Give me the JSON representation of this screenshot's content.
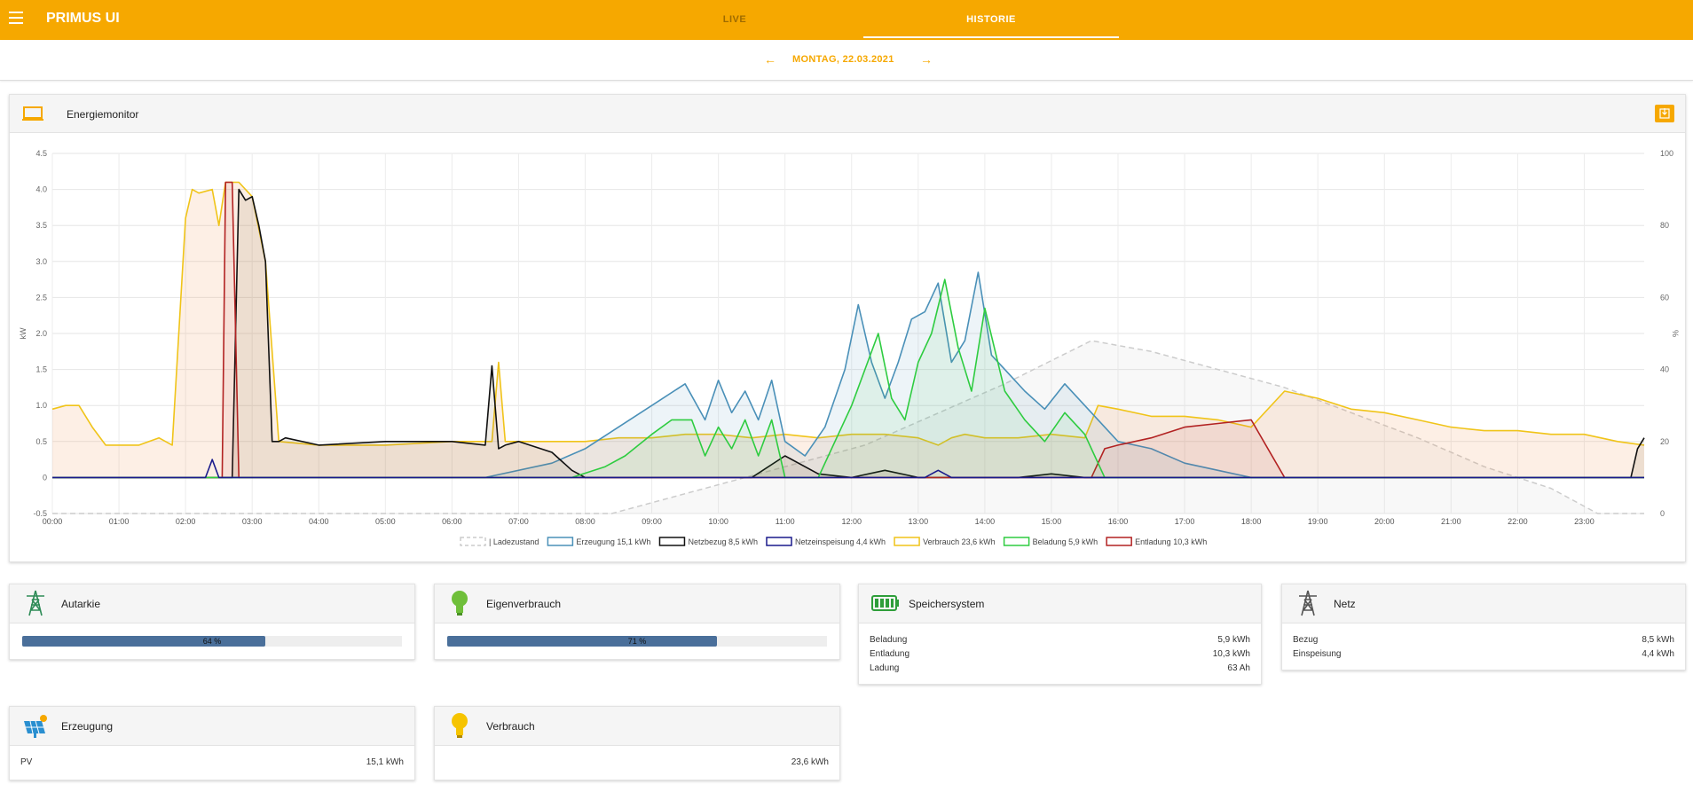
{
  "app": {
    "title": "PRIMUS UI"
  },
  "tabs": [
    {
      "label": "LIVE"
    },
    {
      "label": "HISTORIE"
    }
  ],
  "datebar": {
    "date": "MONTAG, 22.03.2021",
    "prev": "←",
    "next": "→"
  },
  "energiemonitor": {
    "title": "Energiemonitor"
  },
  "colors": {
    "accent": "#f6a800",
    "erzeugung": "#4a90b8",
    "netzbezug": "#111111",
    "netzeinspeisung": "#1a1a8c",
    "verbrauch": "#f0c419",
    "beladung": "#2ecc40",
    "entladung": "#b22222",
    "ladezustand": "#cccccc"
  },
  "chart_data": {
    "type": "line",
    "ylabel": "kW",
    "y2label": "%",
    "ylim": [
      -0.5,
      4.5
    ],
    "y2lim": [
      0,
      100
    ],
    "yticks": [
      "4.5",
      "4.0",
      "3.5",
      "3.0",
      "2.5",
      "2.0",
      "1.5",
      "1.0",
      "0.5",
      "0",
      "-0.5"
    ],
    "y2ticks": [
      "100",
      "80",
      "60",
      "40",
      "20",
      "0"
    ],
    "xticks": [
      "00:00",
      "01:00",
      "02:00",
      "03:00",
      "04:00",
      "05:00",
      "06:00",
      "07:00",
      "08:00",
      "09:00",
      "10:00",
      "11:00",
      "12:00",
      "13:00",
      "14:00",
      "15:00",
      "16:00",
      "17:00",
      "18:00",
      "19:00",
      "20:00",
      "21:00",
      "22:00",
      "23:00"
    ],
    "legend_position": "bottom",
    "series": [
      {
        "name": "Ladezustand",
        "axis": "right",
        "x": [
          0,
          8.4,
          12.2,
          14.3,
          15.6,
          16.5,
          18.5,
          19.5,
          20.5,
          21.5,
          22.5,
          23.2,
          23.9
        ],
        "values": [
          0,
          0,
          19,
          36,
          48,
          45,
          35,
          28,
          21,
          13,
          7,
          0,
          0
        ]
      },
      {
        "name": "Erzeugung 15,1 kWh",
        "axis": "left",
        "x": [
          0,
          6.5,
          7.5,
          8.0,
          8.5,
          9.0,
          9.5,
          9.8,
          10.0,
          10.2,
          10.4,
          10.6,
          10.8,
          11.0,
          11.3,
          11.6,
          11.9,
          12.1,
          12.3,
          12.5,
          12.7,
          12.9,
          13.1,
          13.3,
          13.5,
          13.7,
          13.9,
          14.1,
          14.3,
          14.6,
          14.9,
          15.2,
          15.6,
          16.0,
          16.5,
          17.0,
          17.5,
          18.0,
          23.9
        ],
        "values": [
          0,
          0,
          0.2,
          0.4,
          0.7,
          1.0,
          1.3,
          0.8,
          1.35,
          0.9,
          1.2,
          0.8,
          1.35,
          0.5,
          0.3,
          0.7,
          1.5,
          2.4,
          1.6,
          1.1,
          1.6,
          2.2,
          2.3,
          2.7,
          1.6,
          1.9,
          2.85,
          1.7,
          1.5,
          1.2,
          0.95,
          1.3,
          0.9,
          0.5,
          0.4,
          0.2,
          0.1,
          0,
          0
        ]
      },
      {
        "name": "Netzbezug 8,5 kWh",
        "axis": "left",
        "x": [
          0,
          2.6,
          2.7,
          2.8,
          2.9,
          3.0,
          3.1,
          3.2,
          3.3,
          3.4,
          3.5,
          4.0,
          5.0,
          6.0,
          6.5,
          6.6,
          6.7,
          6.8,
          7.0,
          7.5,
          7.8,
          8.0,
          9.0,
          10.0,
          10.5,
          11.0,
          11.5,
          12.0,
          12.5,
          13.0,
          13.5,
          14.0,
          14.5,
          15.0,
          15.5,
          23.7,
          23.8,
          23.9
        ],
        "values": [
          0,
          0,
          0,
          4.0,
          3.85,
          3.9,
          3.5,
          3.0,
          0.5,
          0.5,
          0.55,
          0.45,
          0.5,
          0.5,
          0.45,
          1.55,
          0.4,
          0.45,
          0.5,
          0.35,
          0.1,
          0,
          0,
          0,
          0,
          0.3,
          0.05,
          0,
          0.1,
          0,
          0,
          0,
          0,
          0.05,
          0,
          0,
          0.4,
          0.55
        ]
      },
      {
        "name": "Netzeinspeisung 4,4 kWh",
        "axis": "left",
        "x": [
          0,
          2.3,
          2.4,
          2.5,
          13.1,
          13.3,
          13.5,
          23.9
        ],
        "values": [
          0,
          0,
          0.25,
          0,
          0,
          0.1,
          0,
          0
        ]
      },
      {
        "name": "Verbrauch 23,6 kWh",
        "axis": "left",
        "x": [
          0,
          0.2,
          0.4,
          0.6,
          0.8,
          1.0,
          1.3,
          1.6,
          1.8,
          2.0,
          2.1,
          2.2,
          2.4,
          2.5,
          2.6,
          2.8,
          3.0,
          3.2,
          3.4,
          4.0,
          5.0,
          6.0,
          6.6,
          6.7,
          6.8,
          7.0,
          7.5,
          8.0,
          8.5,
          9.0,
          9.5,
          10.0,
          10.5,
          11.0,
          11.5,
          12.0,
          12.5,
          13.0,
          13.3,
          13.5,
          13.7,
          14.0,
          14.5,
          15.0,
          15.5,
          15.7,
          16.0,
          16.5,
          17.0,
          17.5,
          18.0,
          18.5,
          19.0,
          19.5,
          20.0,
          20.5,
          21.0,
          21.5,
          22.0,
          22.5,
          23.0,
          23.5,
          23.9
        ],
        "values": [
          0.95,
          1.0,
          1.0,
          0.7,
          0.45,
          0.45,
          0.45,
          0.55,
          0.45,
          3.6,
          4.0,
          3.95,
          4.0,
          3.5,
          4.1,
          4.1,
          3.9,
          3.0,
          0.5,
          0.45,
          0.45,
          0.5,
          0.5,
          1.6,
          0.5,
          0.5,
          0.5,
          0.5,
          0.55,
          0.55,
          0.6,
          0.6,
          0.55,
          0.6,
          0.55,
          0.6,
          0.6,
          0.55,
          0.45,
          0.55,
          0.6,
          0.55,
          0.55,
          0.6,
          0.55,
          1.0,
          0.95,
          0.85,
          0.85,
          0.8,
          0.7,
          1.2,
          1.1,
          0.95,
          0.9,
          0.8,
          0.7,
          0.65,
          0.65,
          0.6,
          0.6,
          0.5,
          0.45
        ]
      },
      {
        "name": "Beladung 5,9 kWh",
        "axis": "left",
        "x": [
          0,
          7.8,
          8.3,
          8.6,
          9.0,
          9.3,
          9.6,
          9.8,
          10.0,
          10.2,
          10.4,
          10.6,
          10.8,
          11.0,
          11.5,
          12.0,
          12.2,
          12.4,
          12.6,
          12.8,
          13.0,
          13.2,
          13.4,
          13.6,
          13.8,
          14.0,
          14.3,
          14.6,
          14.9,
          15.2,
          15.5,
          15.8,
          23.9
        ],
        "values": [
          0,
          0,
          0.15,
          0.3,
          0.6,
          0.8,
          0.8,
          0.3,
          0.7,
          0.4,
          0.8,
          0.3,
          0.8,
          0,
          0,
          1.0,
          1.5,
          2.0,
          1.1,
          0.8,
          1.6,
          2.0,
          2.75,
          1.8,
          1.2,
          2.35,
          1.2,
          0.8,
          0.5,
          0.9,
          0.6,
          0,
          0
        ]
      },
      {
        "name": "Entladung 10,3 kWh",
        "axis": "left",
        "x": [
          0,
          2.55,
          2.6,
          2.7,
          2.8,
          15.6,
          15.8,
          16.0,
          16.5,
          17.0,
          17.5,
          18.0,
          18.5,
          23.9
        ],
        "values": [
          0,
          0,
          4.1,
          4.1,
          0,
          0,
          0.4,
          0.45,
          0.55,
          0.7,
          0.75,
          0.8,
          0,
          0
        ]
      }
    ]
  },
  "cards": {
    "autarkie": {
      "title": "Autarkie",
      "value": 64,
      "label": "64 %"
    },
    "eigenverbrauch": {
      "title": "Eigenverbrauch",
      "value": 71,
      "label": "71 %"
    },
    "speichersystem": {
      "title": "Speichersystem",
      "rows": [
        {
          "k": "Beladung",
          "v": "5,9 kWh"
        },
        {
          "k": "Entladung",
          "v": "10,3 kWh"
        },
        {
          "k": "Ladung",
          "v": "63 Ah"
        }
      ]
    },
    "netz": {
      "title": "Netz",
      "rows": [
        {
          "k": "Bezug",
          "v": "8,5 kWh"
        },
        {
          "k": "Einspeisung",
          "v": "4,4 kWh"
        }
      ]
    },
    "erzeugung": {
      "title": "Erzeugung",
      "rows": [
        {
          "k": "PV",
          "v": "15,1 kWh"
        }
      ]
    },
    "verbrauch": {
      "title": "Verbrauch",
      "rows": [
        {
          "k": "",
          "v": "23,6 kWh"
        }
      ]
    }
  }
}
